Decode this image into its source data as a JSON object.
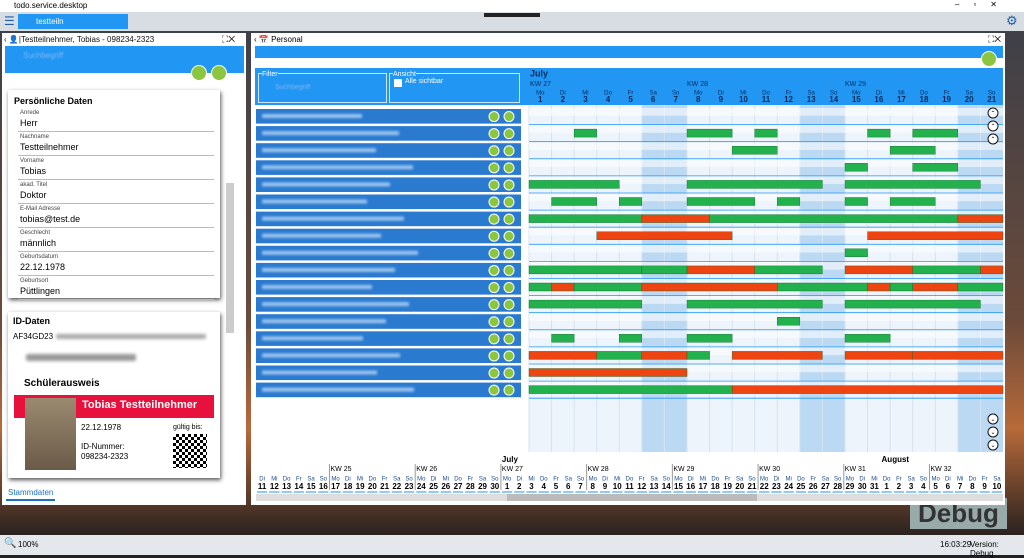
{
  "window": {
    "title": "todo.service.desktop",
    "tab": "testteiln"
  },
  "left": {
    "header": "Testteilnehmer, Tobias - 098234-2323",
    "search": "Suchbegriff",
    "personal": {
      "title": "Persönliche Daten",
      "fields": [
        {
          "label": "Anrede",
          "value": "Herr"
        },
        {
          "label": "Nachname",
          "value": "Testteilnehmer"
        },
        {
          "label": "Vorname",
          "value": "Tobias"
        },
        {
          "label": "akad. Titel",
          "value": "Doktor"
        },
        {
          "label": "E-Mail Adresse",
          "value": "tobias@test.de"
        },
        {
          "label": "Geschlecht",
          "value": "männlich"
        },
        {
          "label": "Geburtsdatum",
          "value": "22.12.1978"
        },
        {
          "label": "Geburtsort",
          "value": "Püttlingen"
        }
      ]
    },
    "id": {
      "title": "ID-Daten",
      "code": "AF34GD23",
      "card_type": "Schülerausweis",
      "name": "Tobias Testteilnehmer",
      "birth": "22.12.1978",
      "id_label": "ID-Nummer:",
      "id_number": "098234-2323",
      "valid": "gültig bis:"
    },
    "tab": "Stammdaten"
  },
  "right": {
    "header": "Personal",
    "filter": "Filter",
    "search": "Suchbegriff",
    "view": "Ansicht",
    "all_visible": "Alle sichtbar",
    "calendar": {
      "month": "July",
      "days": [
        {
          "wd": "Mo",
          "d": 1,
          "kw": "KW 27"
        },
        {
          "wd": "Di",
          "d": 2
        },
        {
          "wd": "Mi",
          "d": 3
        },
        {
          "wd": "Do",
          "d": 4
        },
        {
          "wd": "Fr",
          "d": 5
        },
        {
          "wd": "Sa",
          "d": 6
        },
        {
          "wd": "So",
          "d": 7
        },
        {
          "wd": "Mo",
          "d": 8,
          "kw": "KW 28"
        },
        {
          "wd": "Di",
          "d": 9
        },
        {
          "wd": "Mi",
          "d": 10
        },
        {
          "wd": "Do",
          "d": 11
        },
        {
          "wd": "Fr",
          "d": 12
        },
        {
          "wd": "Sa",
          "d": 13
        },
        {
          "wd": "So",
          "d": 14
        },
        {
          "wd": "Mo",
          "d": 15,
          "kw": "KW 29"
        },
        {
          "wd": "Di",
          "d": 16
        },
        {
          "wd": "Mi",
          "d": 17
        },
        {
          "wd": "Do",
          "d": 18
        },
        {
          "wd": "Fr",
          "d": 19
        },
        {
          "wd": "Sa",
          "d": 20
        },
        {
          "wd": "So",
          "d": 21
        }
      ]
    },
    "gantt": {
      "rows": [
        {
          "bars": []
        },
        {
          "bars": [
            {
              "from": 3,
              "to": 3,
              "color": "green"
            },
            {
              "from": 8,
              "to": 9,
              "color": "green"
            },
            {
              "from": 11,
              "to": 11,
              "color": "green"
            },
            {
              "from": 16,
              "to": 16,
              "color": "green"
            },
            {
              "from": 18,
              "to": 19,
              "color": "green"
            }
          ]
        },
        {
          "bars": [
            {
              "from": 10,
              "to": 11,
              "color": "green"
            },
            {
              "from": 17,
              "to": 18,
              "color": "green"
            }
          ]
        },
        {
          "bars": [
            {
              "from": 15,
              "to": 15,
              "color": "green"
            },
            {
              "from": 18,
              "to": 19,
              "color": "green"
            }
          ]
        },
        {
          "bars": [
            {
              "from": 1,
              "to": 4,
              "color": "green"
            },
            {
              "from": 8,
              "to": 13,
              "color": "green"
            },
            {
              "from": 15,
              "to": 20,
              "color": "green"
            }
          ]
        },
        {
          "bars": [
            {
              "from": 2,
              "to": 3,
              "color": "green"
            },
            {
              "from": 5,
              "to": 5,
              "color": "green"
            },
            {
              "from": 8,
              "to": 10,
              "color": "green"
            },
            {
              "from": 12,
              "to": 12,
              "color": "green"
            },
            {
              "from": 15,
              "to": 15,
              "color": "green"
            },
            {
              "from": 17,
              "to": 18,
              "color": "green"
            }
          ]
        },
        {
          "bars": [
            {
              "from": 1,
              "to": 5,
              "color": "green"
            },
            {
              "from": 6,
              "to": 8,
              "color": "red"
            },
            {
              "from": 9,
              "to": 19,
              "color": "green"
            },
            {
              "from": 20,
              "to": 21,
              "color": "red"
            }
          ]
        },
        {
          "bars": [
            {
              "from": 4,
              "to": 9,
              "color": "red"
            },
            {
              "from": 16,
              "to": 21,
              "color": "red"
            }
          ]
        },
        {
          "bars": [
            {
              "from": 15,
              "to": 15,
              "color": "green"
            }
          ]
        },
        {
          "bars": [
            {
              "from": 1,
              "to": 5,
              "color": "green"
            },
            {
              "from": 6,
              "to": 7,
              "color": "green"
            },
            {
              "from": 8,
              "to": 10,
              "color": "red"
            },
            {
              "from": 11,
              "to": 13,
              "color": "green"
            },
            {
              "from": 15,
              "to": 17,
              "color": "red"
            },
            {
              "from": 18,
              "to": 20,
              "color": "green"
            },
            {
              "from": 21,
              "to": 21,
              "color": "red"
            }
          ]
        },
        {
          "bars": [
            {
              "from": 1,
              "to": 1,
              "color": "green"
            },
            {
              "from": 2,
              "to": 2,
              "color": "red"
            },
            {
              "from": 3,
              "to": 5,
              "color": "green"
            },
            {
              "from": 6,
              "to": 11,
              "color": "red"
            },
            {
              "from": 12,
              "to": 15,
              "color": "green"
            },
            {
              "from": 16,
              "to": 16,
              "color": "red"
            },
            {
              "from": 17,
              "to": 17,
              "color": "green"
            },
            {
              "from": 18,
              "to": 19,
              "color": "red"
            },
            {
              "from": 20,
              "to": 21,
              "color": "green"
            }
          ]
        },
        {
          "bars": [
            {
              "from": 1,
              "to": 5,
              "color": "green"
            },
            {
              "from": 8,
              "to": 13,
              "color": "green"
            },
            {
              "from": 15,
              "to": 20,
              "color": "green"
            }
          ]
        },
        {
          "bars": [
            {
              "from": 12,
              "to": 12,
              "color": "green"
            }
          ]
        },
        {
          "bars": [
            {
              "from": 2,
              "to": 2,
              "color": "green"
            },
            {
              "from": 5,
              "to": 5,
              "color": "green"
            },
            {
              "from": 8,
              "to": 9,
              "color": "green"
            },
            {
              "from": 15,
              "to": 16,
              "color": "green"
            }
          ]
        },
        {
          "bars": [
            {
              "from": 1,
              "to": 3,
              "color": "red"
            },
            {
              "from": 4,
              "to": 5,
              "color": "green"
            },
            {
              "from": 6,
              "to": 7,
              "color": "red"
            },
            {
              "from": 8,
              "to": 8,
              "color": "green"
            },
            {
              "from": 10,
              "to": 13,
              "color": "red"
            },
            {
              "from": 15,
              "to": 17,
              "color": "red"
            },
            {
              "from": 18,
              "to": 21,
              "color": "red"
            }
          ]
        },
        {
          "bars": [
            {
              "from": 1,
              "to": 7,
              "color": "red"
            }
          ]
        },
        {
          "bars": [
            {
              "from": 1,
              "to": 9,
              "color": "green"
            },
            {
              "from": 10,
              "to": 21,
              "color": "red"
            }
          ]
        }
      ]
    },
    "timeline": {
      "days": [
        {
          "wd": "Di",
          "d": 11
        },
        {
          "wd": "Mi",
          "d": 12
        },
        {
          "wd": "Do",
          "d": 13
        },
        {
          "wd": "Fr",
          "d": 14
        },
        {
          "wd": "Sa",
          "d": 15
        },
        {
          "wd": "So",
          "d": 16
        },
        {
          "wd": "Mo",
          "d": 17,
          "kw": "KW 25"
        },
        {
          "wd": "Di",
          "d": 18
        },
        {
          "wd": "Mi",
          "d": 19
        },
        {
          "wd": "Do",
          "d": 20
        },
        {
          "wd": "Fr",
          "d": 21
        },
        {
          "wd": "Sa",
          "d": 22
        },
        {
          "wd": "So",
          "d": 23
        },
        {
          "wd": "Mo",
          "d": 24,
          "kw": "KW 26"
        },
        {
          "wd": "Di",
          "d": 25
        },
        {
          "wd": "Mi",
          "d": 26
        },
        {
          "wd": "Do",
          "d": 27
        },
        {
          "wd": "Fr",
          "d": 28
        },
        {
          "wd": "Sa",
          "d": 29
        },
        {
          "wd": "So",
          "d": 30
        },
        {
          "wd": "Mo",
          "d": 1,
          "kw": "KW 27",
          "month": "July"
        },
        {
          "wd": "Di",
          "d": 2
        },
        {
          "wd": "Mi",
          "d": 3
        },
        {
          "wd": "Do",
          "d": 4
        },
        {
          "wd": "Fr",
          "d": 5
        },
        {
          "wd": "Sa",
          "d": 6
        },
        {
          "wd": "So",
          "d": 7
        },
        {
          "wd": "Mo",
          "d": 8,
          "kw": "KW 28"
        },
        {
          "wd": "Di",
          "d": 9
        },
        {
          "wd": "Mi",
          "d": 10
        },
        {
          "wd": "Do",
          "d": 11
        },
        {
          "wd": "Fr",
          "d": 12
        },
        {
          "wd": "Sa",
          "d": 13
        },
        {
          "wd": "So",
          "d": 14
        },
        {
          "wd": "Mo",
          "d": 15,
          "kw": "KW 29"
        },
        {
          "wd": "Di",
          "d": 16
        },
        {
          "wd": "Mi",
          "d": 17
        },
        {
          "wd": "Do",
          "d": 18
        },
        {
          "wd": "Fr",
          "d": 19
        },
        {
          "wd": "Sa",
          "d": 20
        },
        {
          "wd": "So",
          "d": 21
        },
        {
          "wd": "Mo",
          "d": 22,
          "kw": "KW 30"
        },
        {
          "wd": "Di",
          "d": 23
        },
        {
          "wd": "Mi",
          "d": 24
        },
        {
          "wd": "Do",
          "d": 25
        },
        {
          "wd": "Fr",
          "d": 26
        },
        {
          "wd": "Sa",
          "d": 27
        },
        {
          "wd": "So",
          "d": 28
        },
        {
          "wd": "Mo",
          "d": 29,
          "kw": "KW 31"
        },
        {
          "wd": "Di",
          "d": 30
        },
        {
          "wd": "Mi",
          "d": 31
        },
        {
          "wd": "Do",
          "d": 1,
          "month": "August"
        },
        {
          "wd": "Fr",
          "d": 2
        },
        {
          "wd": "Sa",
          "d": 3
        },
        {
          "wd": "So",
          "d": 4
        },
        {
          "wd": "Mo",
          "d": 5,
          "kw": "KW 32"
        },
        {
          "wd": "Di",
          "d": 6
        },
        {
          "wd": "Mi",
          "d": 7
        },
        {
          "wd": "Do",
          "d": 8
        },
        {
          "wd": "Fr",
          "d": 9
        },
        {
          "wd": "Sa",
          "d": 10
        }
      ]
    }
  },
  "status": {
    "zoom": "100%",
    "time": "16:03:29",
    "version": "Version: Debug",
    "watermark": "Debug"
  }
}
